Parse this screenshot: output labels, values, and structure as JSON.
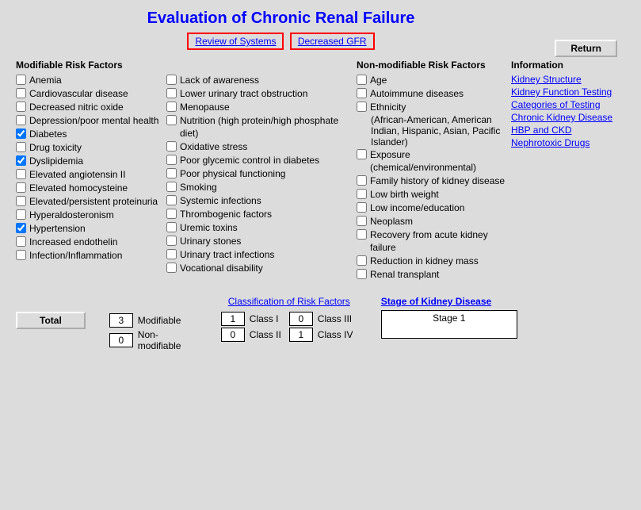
{
  "title": "Evaluation of Chronic Renal Failure",
  "topLinks": {
    "review": "Review of Systems",
    "gfr": "Decreased GFR"
  },
  "returnBtn": "Return",
  "headings": {
    "modifiable": "Modifiable Risk Factors",
    "nonmodifiable": "Non-modifiable Risk Factors",
    "information": "Information"
  },
  "modCol1": [
    {
      "label": "Anemia",
      "checked": false
    },
    {
      "label": "Cardiovascular disease",
      "checked": false
    },
    {
      "label": "Decreased nitric oxide",
      "checked": false
    },
    {
      "label": "Depression/poor mental health",
      "checked": false
    },
    {
      "label": "Diabetes",
      "checked": true
    },
    {
      "label": "Drug toxicity",
      "checked": false
    },
    {
      "label": "Dyslipidemia",
      "checked": true
    },
    {
      "label": "Elevated angiotensin II",
      "checked": false
    },
    {
      "label": "Elevated homocysteine",
      "checked": false
    },
    {
      "label": "Elevated/persistent proteinuria",
      "checked": false
    },
    {
      "label": "Hyperaldosteronism",
      "checked": false
    },
    {
      "label": "Hypertension",
      "checked": true
    },
    {
      "label": "Increased endothelin",
      "checked": false
    },
    {
      "label": "Infection/Inflammation",
      "checked": false
    }
  ],
  "modCol2": [
    {
      "label": "Lack of awareness",
      "checked": false
    },
    {
      "label": "Lower urinary tract obstruction",
      "checked": false
    },
    {
      "label": "Menopause",
      "checked": false
    },
    {
      "label": "Nutrition (high protein/high phosphate diet)",
      "checked": false
    },
    {
      "label": "Oxidative stress",
      "checked": false
    },
    {
      "label": "Poor glycemic control in diabetes",
      "checked": false
    },
    {
      "label": "Poor physical functioning",
      "checked": false
    },
    {
      "label": "Smoking",
      "checked": false
    },
    {
      "label": "Systemic infections",
      "checked": false
    },
    {
      "label": "Thrombogenic factors",
      "checked": false
    },
    {
      "label": "Uremic toxins",
      "checked": false
    },
    {
      "label": "Urinary stones",
      "checked": false
    },
    {
      "label": "Urinary tract infections",
      "checked": false
    },
    {
      "label": "Vocational disability",
      "checked": false
    }
  ],
  "nonMod": [
    {
      "label": "Age",
      "checked": false
    },
    {
      "label": "Autoimmune diseases",
      "checked": false
    },
    {
      "label": "Ethnicity",
      "checked": false,
      "sub": "(African-American, American Indian, Hispanic, Asian, Pacific Islander)"
    },
    {
      "label": "Exposure (chemical/environmental)",
      "checked": false
    },
    {
      "label": "Family history of kidney disease",
      "checked": false
    },
    {
      "label": "Low birth weight",
      "checked": false
    },
    {
      "label": "Low income/education",
      "checked": false
    },
    {
      "label": "Neoplasm",
      "checked": false
    },
    {
      "label": "Recovery from acute kidney failure",
      "checked": false
    },
    {
      "label": "Reduction in kidney mass",
      "checked": false
    },
    {
      "label": "Renal transplant",
      "checked": false
    }
  ],
  "infoLinks": [
    "Kidney Structure",
    "Kidney Function Testing",
    "Categories of Testing",
    "Chronic Kidney Disease",
    "HBP and CKD",
    "Nephrotoxic Drugs"
  ],
  "totals": {
    "totalBtn": "Total",
    "modifiable": {
      "value": "3",
      "label": "Modifiable"
    },
    "nonmodifiable": {
      "value": "0",
      "label": "Non-modifiable"
    },
    "classificationLink": "Classification of Risk Factors",
    "class1": {
      "value": "1",
      "label": "Class I"
    },
    "class2": {
      "value": "0",
      "label": "Class II"
    },
    "class3": {
      "value": "0",
      "label": "Class III"
    },
    "class4": {
      "value": "1",
      "label": "Class IV"
    },
    "stageLink": "Stage of Kidney Disease",
    "stageValue": "Stage 1"
  }
}
